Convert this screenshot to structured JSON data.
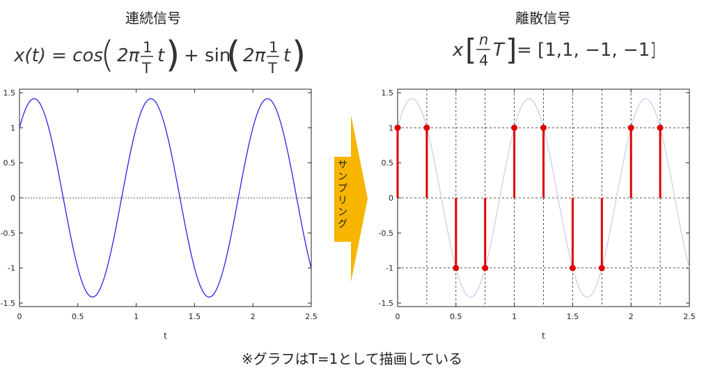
{
  "left": {
    "title": "連続信号",
    "formula": {
      "lhs": "x(t) = cos",
      "two_pi": "2π",
      "num": "1",
      "den": "T",
      "t": "t",
      "plus": "+ sin"
    }
  },
  "right": {
    "title": "離散信号",
    "formula": {
      "x": "x",
      "num": "n",
      "den": "4",
      "T": "T",
      "rhs": "= [1,1, −1, −1]"
    }
  },
  "arrow_label": "サンプリング",
  "footer": "※グラフはT=1として描画している",
  "chart_data": [
    {
      "type": "line",
      "title": "",
      "xlabel": "t",
      "ylabel": "",
      "xlim": [
        0,
        2.5
      ],
      "ylim": [
        -1.55,
        1.55
      ],
      "xticks": [
        "0",
        "0.5",
        "1",
        "1.5",
        "2",
        "2.5"
      ],
      "yticks": [
        "1.5",
        "1",
        "0.5",
        "0",
        "-0.5",
        "-1",
        "-1.5"
      ],
      "series": [
        {
          "function": "cos(2*pi*t) + sin(2*pi*t)",
          "color": "#2222ee",
          "samples_from": 0,
          "samples_to": 2.5
        }
      ],
      "zero_line": true,
      "grid": false
    },
    {
      "type": "stem",
      "title": "",
      "xlabel": "t",
      "ylabel": "",
      "xlim": [
        0,
        2.5
      ],
      "ylim": [
        -1.55,
        1.55
      ],
      "xticks": [
        "0",
        "0.5",
        "1",
        "1.5",
        "2",
        "2.5"
      ],
      "yticks": [
        "1.5",
        "1",
        "0.5",
        "0",
        "-0.5",
        "-1",
        "-1.5"
      ],
      "background_curve": {
        "function": "cos(2*pi*t) + sin(2*pi*t)",
        "color": "#c8c8f0"
      },
      "stems": {
        "x": [
          0,
          0.25,
          0.5,
          0.75,
          1,
          1.25,
          1.5,
          1.75,
          2,
          2.25
        ],
        "y": [
          1,
          1,
          -1,
          -1,
          1,
          1,
          -1,
          -1,
          1,
          1
        ],
        "color": "#e00000"
      },
      "grid": true
    }
  ]
}
